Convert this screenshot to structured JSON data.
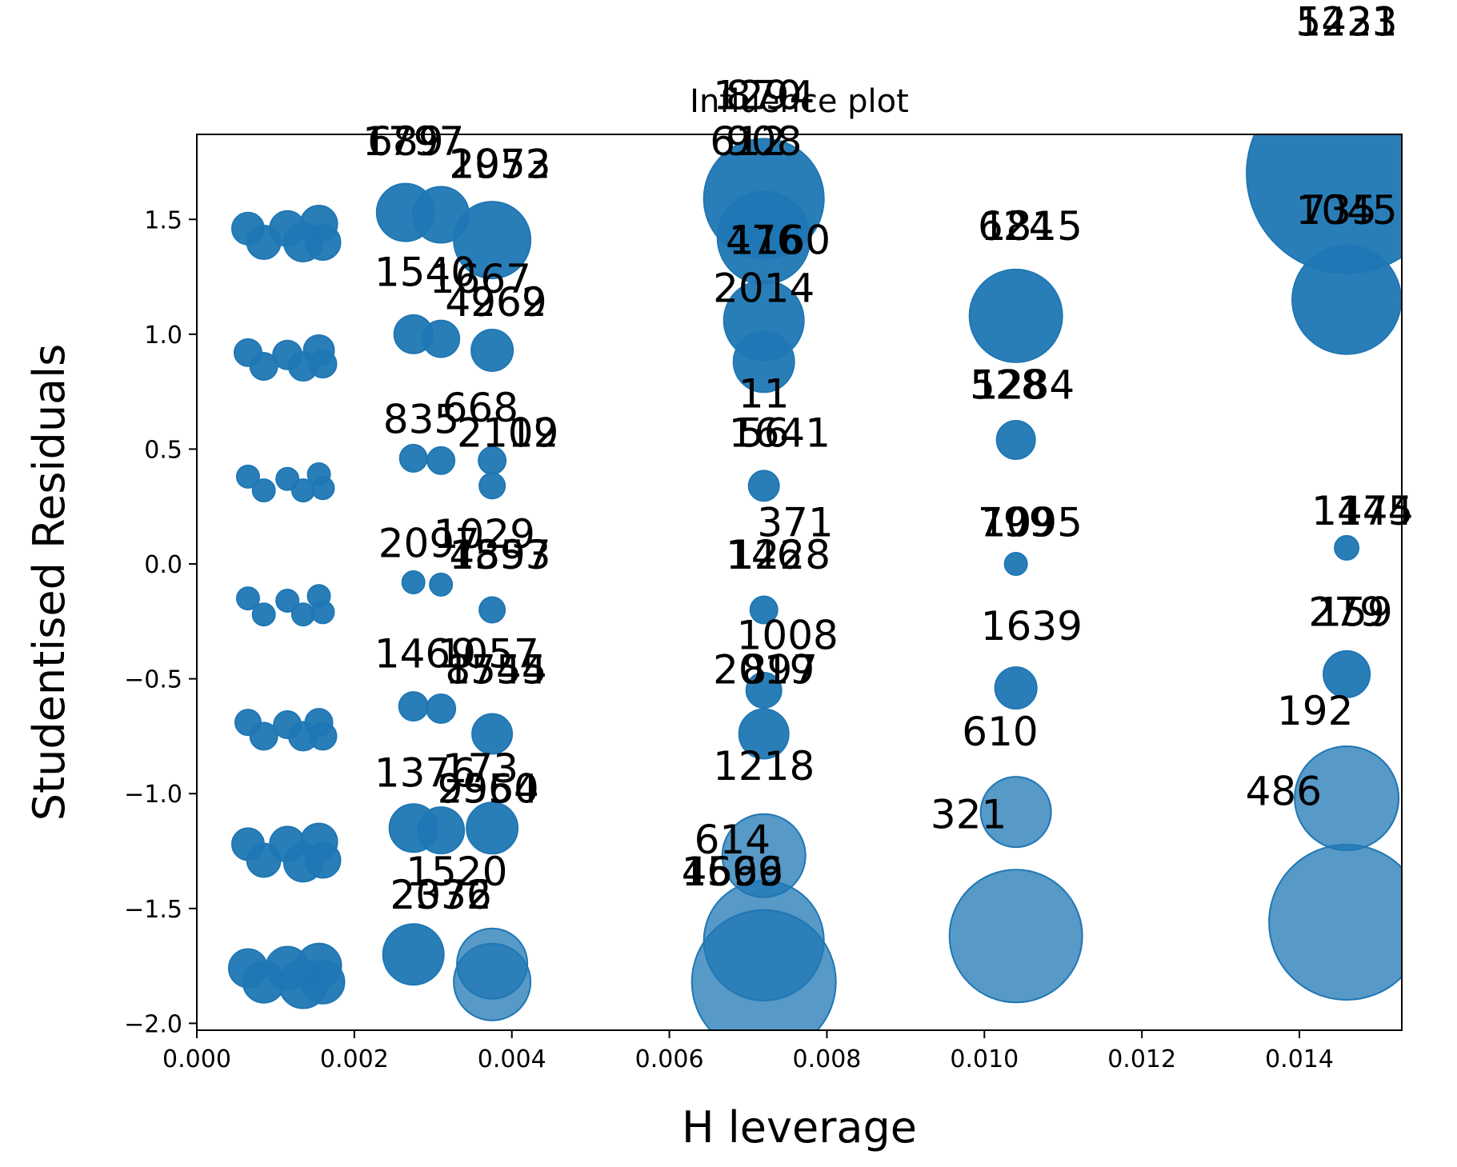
{
  "chart_data": {
    "type": "scatter",
    "title": "Influence plot",
    "xlabel": "H leverage",
    "ylabel": "Studentised Residuals",
    "xlim": [
      0.0,
      0.0153
    ],
    "ylim": [
      -2.03,
      1.87
    ],
    "xticks": [
      0.0,
      0.002,
      0.004,
      0.006,
      0.008,
      0.01,
      0.012,
      0.014
    ],
    "xtick_labels": [
      "0.000",
      "0.002",
      "0.004",
      "0.006",
      "0.008",
      "0.010",
      "0.012",
      "0.014"
    ],
    "yticks": [
      1.5,
      1.0,
      0.5,
      0.0,
      -0.5,
      -1.0,
      -1.5,
      -2.0
    ],
    "ytick_labels": [
      "1.5",
      "1.0",
      "0.5",
      "0.0",
      "−0.5",
      "−1.0",
      "−1.5",
      "−2.0"
    ],
    "grid": false,
    "marker_color": "#1f77b4",
    "size_encoding": "Cook's distance",
    "points": [
      {
        "x": 0.00065,
        "y": 1.46,
        "size": 20
      },
      {
        "x": 0.00085,
        "y": 1.4,
        "size": 21
      },
      {
        "x": 0.00115,
        "y": 1.46,
        "size": 22
      },
      {
        "x": 0.00135,
        "y": 1.4,
        "size": 24
      },
      {
        "x": 0.00155,
        "y": 1.48,
        "size": 23
      },
      {
        "x": 0.0016,
        "y": 1.4,
        "size": 22
      },
      {
        "x": 0.00265,
        "y": 1.53,
        "size": 36,
        "label": "1797"
      },
      {
        "x": 0.0031,
        "y": 1.52,
        "size": 35,
        "label": "689"
      },
      {
        "x": 0.00375,
        "y": 1.41,
        "size": 48,
        "label": "2072"
      },
      {
        "x": 0.0072,
        "y": 1.59,
        "size": 75,
        "label": "908"
      },
      {
        "x": 0.0072,
        "y": 1.42,
        "size": 58,
        "label": "476"
      },
      {
        "x": 0.0072,
        "y": 1.06,
        "size": 50,
        "label": "2014"
      },
      {
        "x": 0.0104,
        "y": 1.08,
        "size": 58,
        "label": "624"
      },
      {
        "x": 0.0146,
        "y": 1.7,
        "size": 125,
        "label": "1231"
      },
      {
        "x": 0.0146,
        "y": 1.15,
        "size": 68,
        "label": "1045"
      },
      {
        "x": 0.00065,
        "y": 0.92,
        "size": 17
      },
      {
        "x": 0.00085,
        "y": 0.86,
        "size": 17
      },
      {
        "x": 0.00115,
        "y": 0.91,
        "size": 18
      },
      {
        "x": 0.00135,
        "y": 0.86,
        "size": 18
      },
      {
        "x": 0.00155,
        "y": 0.93,
        "size": 19
      },
      {
        "x": 0.0016,
        "y": 0.87,
        "size": 17
      },
      {
        "x": 0.00275,
        "y": 1.0,
        "size": 24,
        "label": "1540"
      },
      {
        "x": 0.0031,
        "y": 0.98,
        "size": 23,
        "label": "1667"
      },
      {
        "x": 0.00375,
        "y": 0.93,
        "size": 26,
        "label": "4262"
      },
      {
        "x": 0.0072,
        "y": 0.88,
        "size": 38,
        "label": "616"
      },
      {
        "x": 0.0104,
        "y": 0.54,
        "size": 24,
        "label": "1284"
      },
      {
        "x": 0.00065,
        "y": 0.38,
        "size": 14
      },
      {
        "x": 0.00085,
        "y": 0.32,
        "size": 14
      },
      {
        "x": 0.00115,
        "y": 0.37,
        "size": 14
      },
      {
        "x": 0.00135,
        "y": 0.32,
        "size": 14
      },
      {
        "x": 0.00155,
        "y": 0.39,
        "size": 14
      },
      {
        "x": 0.0016,
        "y": 0.33,
        "size": 14
      },
      {
        "x": 0.00275,
        "y": 0.46,
        "size": 17,
        "label": "835"
      },
      {
        "x": 0.0031,
        "y": 0.45,
        "size": 17,
        "label": "668"
      },
      {
        "x": 0.00375,
        "y": 0.45,
        "size": 17,
        "label": "2109"
      },
      {
        "x": 0.00375,
        "y": 0.34,
        "size": 16
      },
      {
        "x": 0.0072,
        "y": 0.34,
        "size": 19,
        "label": "1641"
      },
      {
        "x": 0.0104,
        "y": 0.0,
        "size": 14,
        "label": "1095"
      },
      {
        "x": 0.0146,
        "y": 0.07,
        "size": 15,
        "label": "1445"
      },
      {
        "x": 0.00065,
        "y": -0.15,
        "size": 14
      },
      {
        "x": 0.00085,
        "y": -0.22,
        "size": 14
      },
      {
        "x": 0.00115,
        "y": -0.16,
        "size": 14
      },
      {
        "x": 0.00135,
        "y": -0.22,
        "size": 14
      },
      {
        "x": 0.00155,
        "y": -0.14,
        "size": 14
      },
      {
        "x": 0.0016,
        "y": -0.21,
        "size": 14
      },
      {
        "x": 0.00275,
        "y": -0.08,
        "size": 14,
        "label": "2097"
      },
      {
        "x": 0.0031,
        "y": -0.09,
        "size": 14,
        "label": "1029"
      },
      {
        "x": 0.00375,
        "y": -0.2,
        "size": 16,
        "label": "1897"
      },
      {
        "x": 0.0072,
        "y": -0.2,
        "size": 17,
        "label": "1228"
      },
      {
        "x": 0.0104,
        "y": -0.54,
        "size": 26,
        "label": "1639"
      },
      {
        "x": 0.0146,
        "y": -0.48,
        "size": 29,
        "label": "279"
      },
      {
        "x": 0.00065,
        "y": -0.69,
        "size": 16
      },
      {
        "x": 0.00085,
        "y": -0.75,
        "size": 17
      },
      {
        "x": 0.00115,
        "y": -0.7,
        "size": 17
      },
      {
        "x": 0.00135,
        "y": -0.75,
        "size": 18
      },
      {
        "x": 0.00155,
        "y": -0.69,
        "size": 17
      },
      {
        "x": 0.0016,
        "y": -0.75,
        "size": 17
      },
      {
        "x": 0.00275,
        "y": -0.62,
        "size": 18,
        "label": "1469"
      },
      {
        "x": 0.0031,
        "y": -0.63,
        "size": 18,
        "label": "1057"
      },
      {
        "x": 0.00375,
        "y": -0.74,
        "size": 25,
        "label": "1554"
      },
      {
        "x": 0.0072,
        "y": -0.55,
        "size": 22,
        "label": "897"
      },
      {
        "x": 0.0072,
        "y": -0.74,
        "size": 31,
        "label": "1008"
      },
      {
        "x": 0.0104,
        "y": -1.08,
        "size": 44,
        "label": "610"
      },
      {
        "x": 0.0146,
        "y": -1.02,
        "size": 65,
        "label": "192"
      },
      {
        "x": 0.00065,
        "y": -1.22,
        "size": 20
      },
      {
        "x": 0.00085,
        "y": -1.29,
        "size": 21
      },
      {
        "x": 0.00115,
        "y": -1.22,
        "size": 22
      },
      {
        "x": 0.00135,
        "y": -1.3,
        "size": 24
      },
      {
        "x": 0.00155,
        "y": -1.21,
        "size": 23
      },
      {
        "x": 0.0016,
        "y": -1.29,
        "size": 22
      },
      {
        "x": 0.00275,
        "y": -1.15,
        "size": 30,
        "label": "1376"
      },
      {
        "x": 0.0031,
        "y": -1.16,
        "size": 29,
        "label": "173"
      },
      {
        "x": 0.00375,
        "y": -1.15,
        "size": 32,
        "label": "2554"
      },
      {
        "x": 0.0072,
        "y": -1.27,
        "size": 52,
        "label": "1218"
      },
      {
        "x": 0.0104,
        "y": -1.62,
        "size": 83,
        "label": "321"
      },
      {
        "x": 0.0146,
        "y": -1.56,
        "size": 97,
        "label": "486"
      },
      {
        "x": 0.00065,
        "y": -1.76,
        "size": 24
      },
      {
        "x": 0.00085,
        "y": -1.82,
        "size": 26
      },
      {
        "x": 0.00115,
        "y": -1.76,
        "size": 27
      },
      {
        "x": 0.00135,
        "y": -1.83,
        "size": 30
      },
      {
        "x": 0.00155,
        "y": -1.75,
        "size": 28
      },
      {
        "x": 0.0016,
        "y": -1.82,
        "size": 27
      },
      {
        "x": 0.00275,
        "y": -1.7,
        "size": 38,
        "label": "1520"
      },
      {
        "x": 0.00375,
        "y": -1.74,
        "size": 44,
        "label": "2032"
      },
      {
        "x": 0.00375,
        "y": -1.82,
        "size": 48
      },
      {
        "x": 0.0072,
        "y": -1.64,
        "size": 75,
        "label": "614"
      },
      {
        "x": 0.0072,
        "y": -1.82,
        "size": 90,
        "label": "1599"
      }
    ],
    "labels": [
      {
        "text": "1231",
        "x": 0.0146,
        "y": 2.3
      },
      {
        "text": "5423",
        "x": 0.0146,
        "y": 2.3
      },
      {
        "text": "1294",
        "x": 0.0072,
        "y": 1.98
      },
      {
        "text": "870",
        "x": 0.0072,
        "y": 1.98
      },
      {
        "text": "908",
        "x": 0.0072,
        "y": 1.78
      },
      {
        "text": "612",
        "x": 0.007,
        "y": 1.78
      },
      {
        "text": "1797",
        "x": 0.00275,
        "y": 1.78
      },
      {
        "text": "689",
        "x": 0.00265,
        "y": 1.78
      },
      {
        "text": "2072",
        "x": 0.00385,
        "y": 1.68
      },
      {
        "text": "1953",
        "x": 0.00385,
        "y": 1.68
      },
      {
        "text": "1045",
        "x": 0.0146,
        "y": 1.48
      },
      {
        "text": "735",
        "x": 0.0145,
        "y": 1.48
      },
      {
        "text": "624",
        "x": 0.0104,
        "y": 1.41
      },
      {
        "text": "1815",
        "x": 0.0106,
        "y": 1.41
      },
      {
        "text": "476",
        "x": 0.0072,
        "y": 1.35
      },
      {
        "text": "1160",
        "x": 0.0074,
        "y": 1.35
      },
      {
        "text": "1540",
        "x": 0.0029,
        "y": 1.21
      },
      {
        "text": "1667",
        "x": 0.0036,
        "y": 1.18
      },
      {
        "text": "4262",
        "x": 0.0038,
        "y": 1.08
      },
      {
        "text": "4969",
        "x": 0.0038,
        "y": 1.08
      },
      {
        "text": "2014",
        "x": 0.0072,
        "y": 1.14
      },
      {
        "text": "1284",
        "x": 0.0105,
        "y": 0.72
      },
      {
        "text": "528",
        "x": 0.0103,
        "y": 0.72
      },
      {
        "text": "11",
        "x": 0.0072,
        "y": 0.68
      },
      {
        "text": "835",
        "x": 0.00285,
        "y": 0.57
      },
      {
        "text": "668",
        "x": 0.0036,
        "y": 0.62
      },
      {
        "text": "2109",
        "x": 0.00395,
        "y": 0.51
      },
      {
        "text": "2112",
        "x": 0.00395,
        "y": 0.51
      },
      {
        "text": "1641",
        "x": 0.0074,
        "y": 0.51
      },
      {
        "text": "56",
        "x": 0.0072,
        "y": 0.51
      },
      {
        "text": "371",
        "x": 0.0076,
        "y": 0.12
      },
      {
        "text": "1095",
        "x": 0.0106,
        "y": 0.12
      },
      {
        "text": "799",
        "x": 0.0104,
        "y": 0.12
      },
      {
        "text": "1445",
        "x": 0.0148,
        "y": 0.17
      },
      {
        "text": "1174",
        "x": 0.0148,
        "y": 0.17
      },
      {
        "text": "2097",
        "x": 0.00295,
        "y": 0.03
      },
      {
        "text": "1029",
        "x": 0.00365,
        "y": 0.07
      },
      {
        "text": "1897",
        "x": 0.00385,
        "y": -0.02
      },
      {
        "text": "4553",
        "x": 0.00385,
        "y": -0.02
      },
      {
        "text": "1228",
        "x": 0.0074,
        "y": -0.02
      },
      {
        "text": "146",
        "x": 0.0072,
        "y": -0.02
      },
      {
        "text": "1639",
        "x": 0.0106,
        "y": -0.33
      },
      {
        "text": "279",
        "x": 0.0146,
        "y": -0.27
      },
      {
        "text": "159",
        "x": 0.0147,
        "y": -0.27
      },
      {
        "text": "1008",
        "x": 0.0075,
        "y": -0.37
      },
      {
        "text": "1469",
        "x": 0.0029,
        "y": -0.45
      },
      {
        "text": "1057",
        "x": 0.0037,
        "y": -0.45
      },
      {
        "text": "1554",
        "x": 0.0038,
        "y": -0.52
      },
      {
        "text": "8745",
        "x": 0.0038,
        "y": -0.52
      },
      {
        "text": "897",
        "x": 0.0074,
        "y": -0.52
      },
      {
        "text": "2019",
        "x": 0.0072,
        "y": -0.52
      },
      {
        "text": "192",
        "x": 0.0142,
        "y": -0.7
      },
      {
        "text": "610",
        "x": 0.0102,
        "y": -0.79
      },
      {
        "text": "1376",
        "x": 0.0029,
        "y": -0.97
      },
      {
        "text": "173",
        "x": 0.0036,
        "y": -0.95
      },
      {
        "text": "2554",
        "x": 0.0037,
        "y": -1.04
      },
      {
        "text": "9960",
        "x": 0.0037,
        "y": -1.04
      },
      {
        "text": "1218",
        "x": 0.0072,
        "y": -0.94
      },
      {
        "text": "486",
        "x": 0.0138,
        "y": -1.05
      },
      {
        "text": "321",
        "x": 0.0098,
        "y": -1.15
      },
      {
        "text": "614",
        "x": 0.0068,
        "y": -1.26
      },
      {
        "text": "1599",
        "x": 0.0068,
        "y": -1.4
      },
      {
        "text": "4666",
        "x": 0.0068,
        "y": -1.4
      },
      {
        "text": "1520",
        "x": 0.0033,
        "y": -1.4
      },
      {
        "text": "2032",
        "x": 0.0031,
        "y": -1.5
      },
      {
        "text": "2376",
        "x": 0.0031,
        "y": -1.5
      }
    ]
  }
}
